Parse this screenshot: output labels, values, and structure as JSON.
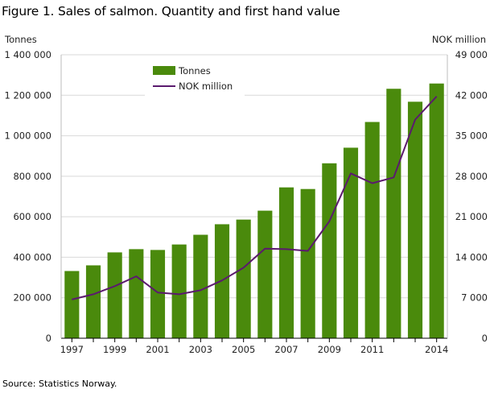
{
  "title": "Figure 1. Sales of salmon. Quantity and first hand value",
  "source": "Source: Statistics Norway.",
  "chart_data": {
    "type": "bar",
    "x": [
      1997,
      1998,
      1999,
      2000,
      2001,
      2002,
      2003,
      2004,
      2005,
      2006,
      2007,
      2008,
      2009,
      2010,
      2011,
      2012,
      2013,
      2014
    ],
    "x_tick_labels": [
      "1997",
      "1999",
      "2001",
      "2003",
      "2005",
      "2007",
      "2009",
      "2011",
      "2014"
    ],
    "series": [
      {
        "name": "Tonnes",
        "type": "bar",
        "axis": "left",
        "color": "#4a8a0c",
        "values": [
          332000,
          360000,
          424000,
          440000,
          436000,
          463000,
          511000,
          563000,
          586000,
          630000,
          745000,
          737000,
          864000,
          941000,
          1068000,
          1232000,
          1168000,
          1258000
        ]
      },
      {
        "name": "NOK million",
        "type": "line",
        "axis": "right",
        "color": "#5b1a6e",
        "values": [
          6700,
          7600,
          9000,
          10700,
          7900,
          7600,
          8300,
          10000,
          12200,
          15500,
          15400,
          15100,
          20200,
          28500,
          26800,
          27800,
          37800,
          41800
        ]
      }
    ],
    "yaxis_left": {
      "label": "Tonnes",
      "range": [
        0,
        1400000
      ],
      "ticks": [
        0,
        200000,
        400000,
        600000,
        800000,
        1000000,
        1200000,
        1400000
      ],
      "tick_labels": [
        "0",
        "200 000",
        "400 000",
        "600 000",
        "800 000",
        "1 000 000",
        "1 200 000",
        "1 400 000"
      ]
    },
    "yaxis_right": {
      "label": "NOK million",
      "range": [
        0,
        49000
      ],
      "ticks": [
        0,
        7000,
        14000,
        21000,
        28000,
        35000,
        42000,
        49000
      ],
      "tick_labels": [
        "0",
        "7 000",
        "14 000",
        "21 000",
        "28 000",
        "35 000",
        "42 000",
        "49 000"
      ]
    },
    "grid": true,
    "legend": {
      "placement": "top-left",
      "entries": [
        "Tonnes",
        "NOK million"
      ]
    }
  }
}
